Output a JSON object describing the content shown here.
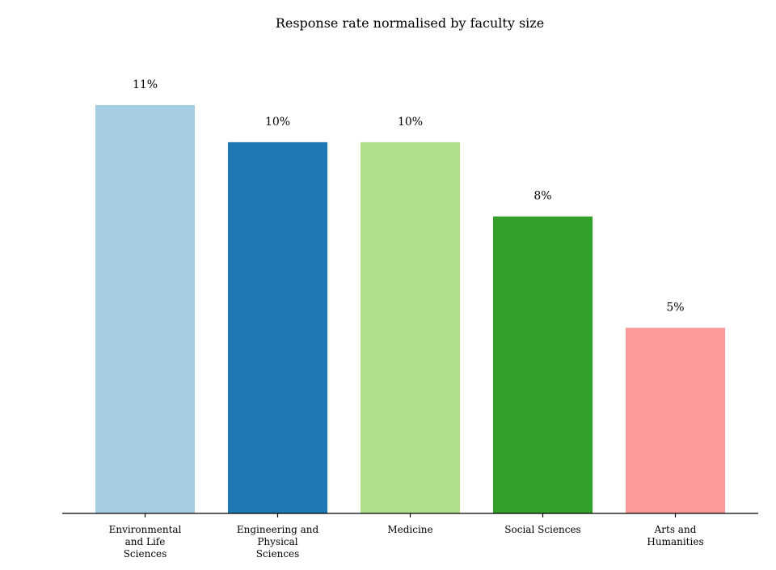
{
  "chart_data": {
    "type": "bar",
    "title": "Response rate normalised by faculty size",
    "xlabel": "",
    "ylabel": "",
    "ylim": [
      0,
      11.5
    ],
    "grid": false,
    "categories": [
      "Environmental and Life Sciences",
      "Engineering and Physical Sciences",
      "Medicine",
      "Social Sciences",
      "Arts and Humanities"
    ],
    "tick_lines": [
      [
        "Environmental",
        "and Life",
        "Sciences"
      ],
      [
        "Engineering and",
        "Physical",
        "Sciences"
      ],
      [
        "Medicine"
      ],
      [
        "Social Sciences"
      ],
      [
        "Arts and",
        "Humanities"
      ]
    ],
    "values": [
      11,
      10,
      10,
      8,
      5
    ],
    "value_labels": [
      "11%",
      "10%",
      "10%",
      "8%",
      "5%"
    ],
    "colors": [
      "#a6cee3",
      "#1f78b4",
      "#b2df8a",
      "#33a02c",
      "#fb9a99"
    ]
  }
}
